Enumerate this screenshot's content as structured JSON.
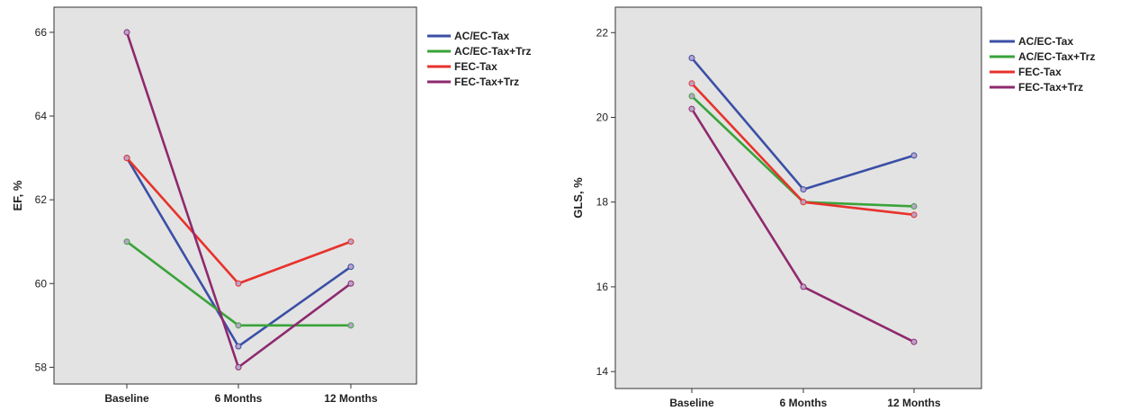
{
  "chart_data": [
    {
      "type": "line",
      "xlabel": "",
      "ylabel": "EF, %",
      "categories": [
        "Baseline",
        "6 Months",
        "12 Months"
      ],
      "ylim": [
        57.6,
        66.6
      ],
      "yticks": [
        58,
        60,
        62,
        64,
        66
      ],
      "grid": false,
      "legend_position": "right",
      "series": [
        {
          "name": "AC/EC-Tax",
          "color": "#3b4fa6",
          "values": [
            63.0,
            58.5,
            60.4
          ]
        },
        {
          "name": "AC/EC-Tax+Trz",
          "color": "#3aa33a",
          "values": [
            61.0,
            59.0,
            59.0
          ]
        },
        {
          "name": "FEC-Tax",
          "color": "#e8322c",
          "values": [
            63.0,
            60.0,
            61.0
          ]
        },
        {
          "name": "FEC-Tax+Trz",
          "color": "#8e2a6e",
          "values": [
            66.0,
            58.0,
            60.0
          ]
        }
      ]
    },
    {
      "type": "line",
      "xlabel": "",
      "ylabel": "GLS, %",
      "categories": [
        "Baseline",
        "6 Months",
        "12 Months"
      ],
      "ylim": [
        13.6,
        22.6
      ],
      "yticks": [
        14,
        16,
        18,
        20,
        22
      ],
      "grid": false,
      "legend_position": "right",
      "series": [
        {
          "name": "AC/EC-Tax",
          "color": "#3b4fa6",
          "values": [
            21.4,
            18.3,
            19.1
          ]
        },
        {
          "name": "AC/EC-Tax+Trz",
          "color": "#3aa33a",
          "values": [
            20.5,
            18.0,
            17.9
          ]
        },
        {
          "name": "FEC-Tax",
          "color": "#e8322c",
          "values": [
            20.8,
            18.0,
            17.7
          ]
        },
        {
          "name": "FEC-Tax+Trz",
          "color": "#8e2a6e",
          "values": [
            20.2,
            16.0,
            14.7
          ]
        }
      ]
    }
  ]
}
